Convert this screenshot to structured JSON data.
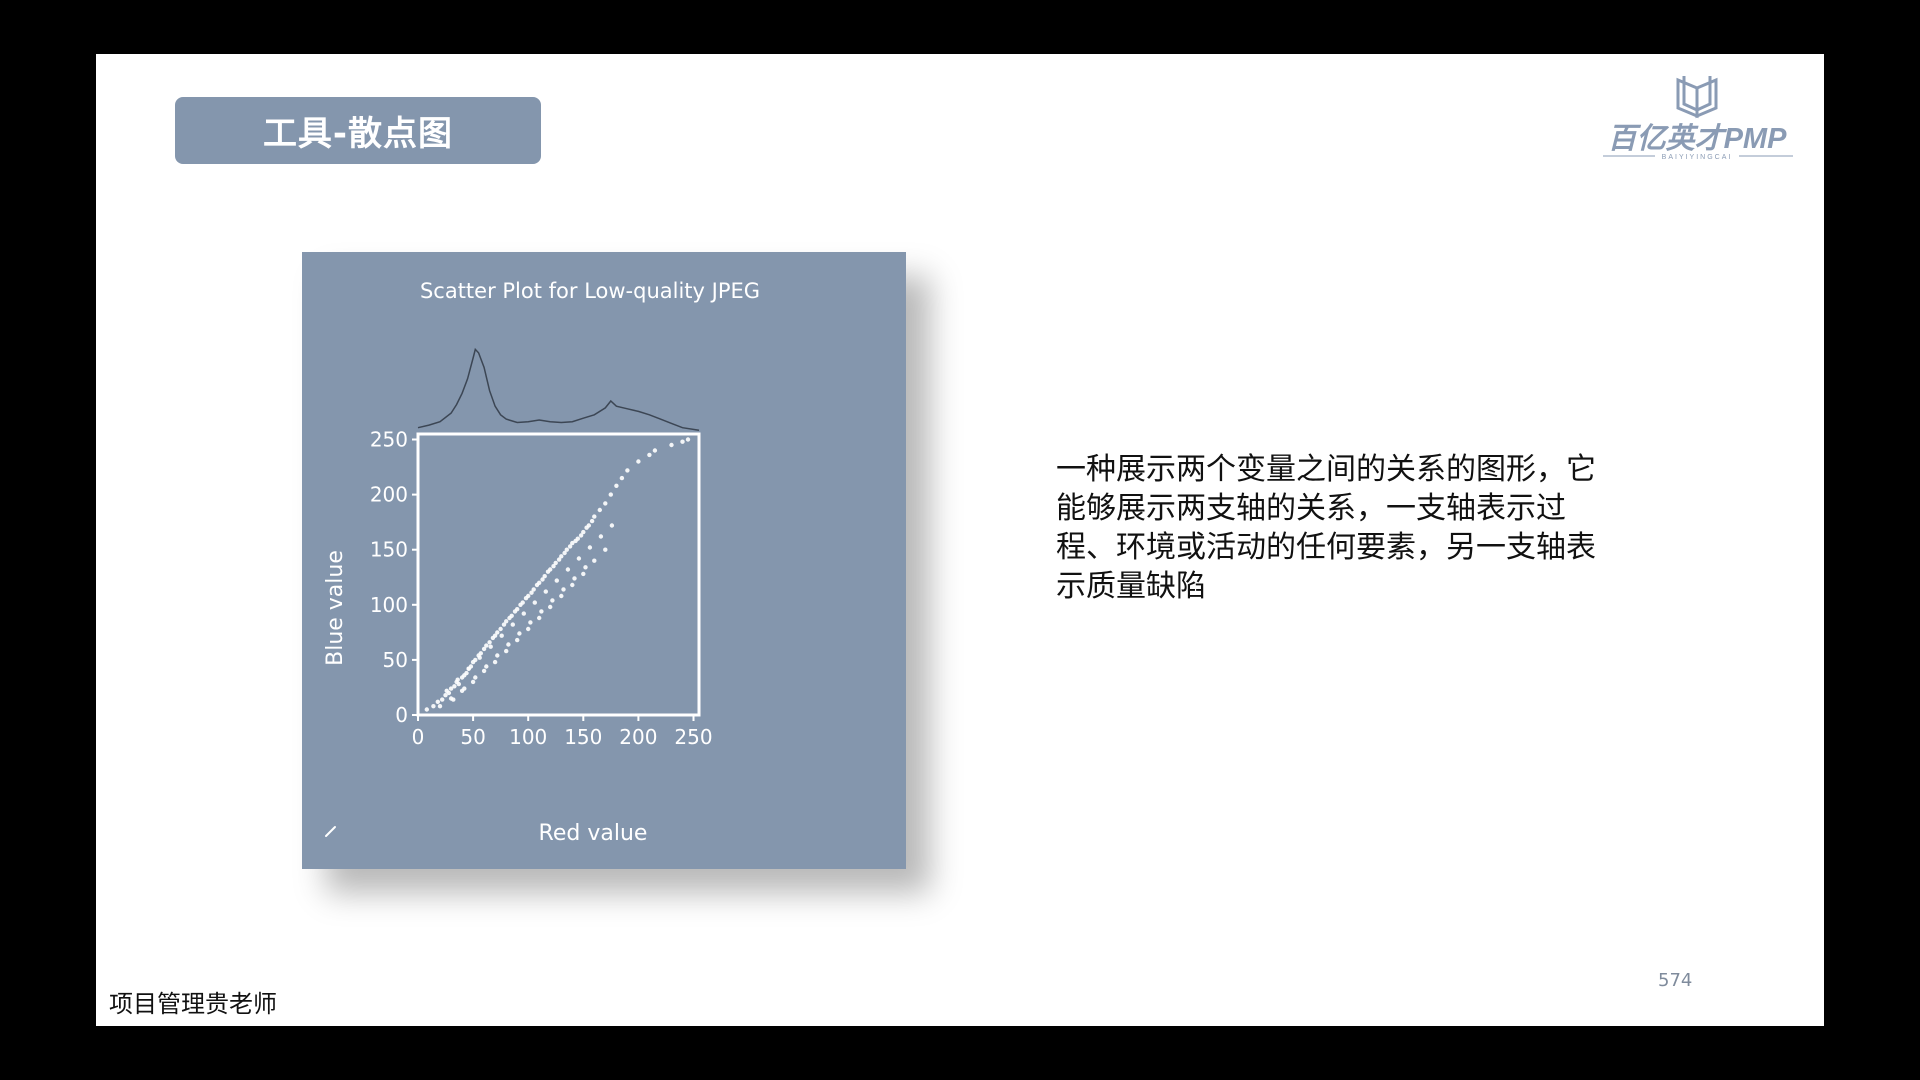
{
  "colors": {
    "frame": "#000000",
    "slide_bg": "#ffffff",
    "title_tab_bg": "#8496ad",
    "chart_bg": "#8496ad",
    "chart_fg": "#ffffff",
    "histogram_line": "#3c4654",
    "logo_blue": "#8a9bb4"
  },
  "slide": {
    "title": "工具-散点图",
    "description": "一种展示两个变量之间的关系的图形，它能够展示两支轴的关系，一支轴表示过程、环境或活动的任何要素，另一支轴表示质量缺陷",
    "page_number": "574",
    "footer": "项目管理贵老师"
  },
  "logo": {
    "text": "百亿英才PMP",
    "subtext": "BAIYIYINGCAI",
    "icon": "book-icon"
  },
  "chart_data": {
    "type": "scatter",
    "title": "Scatter Plot for Low-quality JPEG",
    "xlabel": "Red value",
    "ylabel": "Blue value",
    "xlim": [
      0,
      255
    ],
    "ylim": [
      0,
      255
    ],
    "xticks": [
      0,
      50,
      100,
      150,
      200,
      250
    ],
    "yticks": [
      0,
      50,
      100,
      150,
      200,
      250
    ],
    "grid": false,
    "legend": "none",
    "point_color": "#ffffff",
    "marginal_histogram": {
      "axis": "x",
      "x": [
        0,
        10,
        20,
        30,
        35,
        40,
        45,
        50,
        52,
        55,
        60,
        65,
        70,
        75,
        80,
        90,
        100,
        110,
        120,
        130,
        140,
        150,
        160,
        170,
        175,
        180,
        190,
        200,
        210,
        220,
        230,
        240,
        255
      ],
      "values": [
        0.05,
        0.08,
        0.12,
        0.22,
        0.32,
        0.45,
        0.62,
        0.86,
        0.96,
        0.92,
        0.75,
        0.48,
        0.3,
        0.2,
        0.15,
        0.11,
        0.12,
        0.14,
        0.12,
        0.11,
        0.12,
        0.16,
        0.2,
        0.28,
        0.36,
        0.3,
        0.27,
        0.24,
        0.2,
        0.15,
        0.1,
        0.05,
        0.02
      ]
    },
    "x": [
      8,
      14,
      18,
      22,
      25,
      28,
      30,
      33,
      35,
      37,
      40,
      42,
      44,
      46,
      48,
      50,
      52,
      55,
      57,
      60,
      62,
      65,
      68,
      70,
      72,
      75,
      78,
      80,
      83,
      85,
      88,
      90,
      93,
      95,
      98,
      100,
      103,
      105,
      108,
      110,
      113,
      115,
      118,
      120,
      123,
      125,
      128,
      130,
      133,
      135,
      138,
      140,
      143,
      145,
      148,
      150,
      153,
      155,
      158,
      160,
      165,
      170,
      175,
      180,
      185,
      190,
      200,
      210,
      215,
      230,
      240,
      245,
      20,
      30,
      40,
      50,
      60,
      70,
      80,
      90,
      100,
      110,
      120,
      130,
      140,
      150,
      160,
      170,
      26,
      36,
      46,
      56,
      66,
      76,
      86,
      96,
      106,
      116,
      126,
      136,
      146,
      156,
      166,
      176,
      32,
      42,
      52,
      62,
      72,
      82,
      92,
      102,
      112,
      122,
      132,
      142,
      152
    ],
    "y": [
      5,
      8,
      12,
      14,
      18,
      20,
      24,
      26,
      30,
      28,
      34,
      36,
      38,
      42,
      44,
      48,
      50,
      54,
      56,
      60,
      63,
      66,
      70,
      72,
      75,
      78,
      82,
      85,
      88,
      90,
      94,
      96,
      100,
      102,
      106,
      108,
      111,
      114,
      118,
      120,
      123,
      126,
      130,
      132,
      135,
      138,
      141,
      144,
      147,
      150,
      153,
      156,
      158,
      160,
      163,
      166,
      170,
      172,
      176,
      180,
      186,
      192,
      200,
      208,
      215,
      222,
      230,
      236,
      240,
      245,
      248,
      250,
      8,
      15,
      22,
      30,
      40,
      48,
      58,
      68,
      78,
      88,
      98,
      108,
      118,
      128,
      140,
      150,
      22,
      32,
      42,
      52,
      62,
      72,
      82,
      92,
      102,
      112,
      122,
      132,
      142,
      152,
      162,
      172,
      14,
      24,
      34,
      44,
      54,
      64,
      74,
      84,
      94,
      104,
      114,
      124,
      134
    ]
  }
}
